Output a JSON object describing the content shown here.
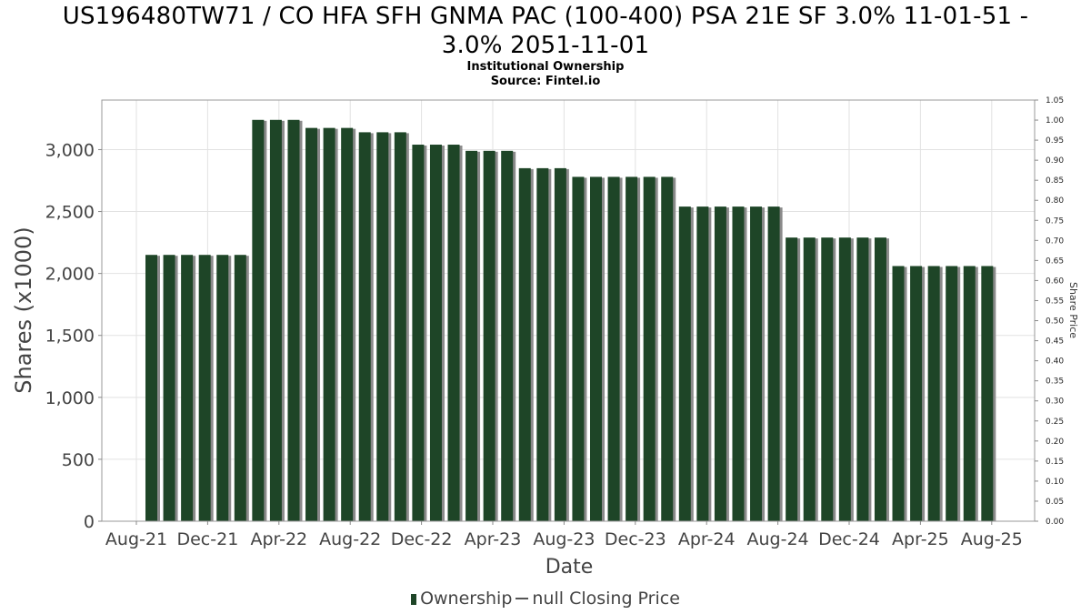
{
  "title_line1": "US196480TW71 / CO HFA SFH GNMA PAC (100-400) PSA 21E SF 3.0% 11-01-51 -",
  "title_line2": "3.0% 2051-11-01",
  "subtitle1": "Institutional Ownership",
  "subtitle2": "Source: Fintel.io",
  "legend": {
    "ownership": "Ownership",
    "price": "null Closing Price"
  },
  "colors": {
    "bar": "#1e4527",
    "bar_shadow": "#8a8a8a",
    "grid": "#e2e2e2"
  },
  "chart_data": {
    "type": "bar",
    "title": "US196480TW71 / CO HFA SFH GNMA PAC (100-400) PSA 21E SF 3.0% 11-01-51 - 3.0% 2051-11-01",
    "subtitle": "Institutional Ownership",
    "xlabel": "Date",
    "ylabel": "Shares (x1000)",
    "y2label": "Share Price",
    "ylim": [
      0,
      3400
    ],
    "y2lim": [
      0,
      1.05
    ],
    "grid": true,
    "legend_position": "bottom",
    "x_ticks": [
      "Aug-21",
      "Dec-21",
      "Apr-22",
      "Aug-22",
      "Dec-22",
      "Apr-23",
      "Aug-23",
      "Dec-23",
      "Apr-24",
      "Aug-24",
      "Dec-24",
      "Apr-25",
      "Aug-25"
    ],
    "y_ticks": [
      "0",
      "500",
      "1,000",
      "1,500",
      "2,000",
      "2,500",
      "3,000"
    ],
    "y2_ticks": [
      "0.00",
      "0.05",
      "0.10",
      "0.15",
      "0.20",
      "0.25",
      "0.30",
      "0.35",
      "0.40",
      "0.45",
      "0.50",
      "0.55",
      "0.60",
      "0.65",
      "0.70",
      "0.75",
      "0.80",
      "0.85",
      "0.90",
      "0.95",
      "1.00",
      "1.05"
    ],
    "series": [
      {
        "name": "Ownership",
        "values": [
          2150,
          2150,
          2150,
          2150,
          2150,
          2150,
          3240,
          3240,
          3240,
          3175,
          3175,
          3175,
          3140,
          3140,
          3140,
          3040,
          3040,
          3040,
          2990,
          2990,
          2990,
          2850,
          2850,
          2850,
          2780,
          2780,
          2780,
          2780,
          2780,
          2780,
          2540,
          2540,
          2540,
          2540,
          2540,
          2540,
          2290,
          2290,
          2290,
          2290,
          2290,
          2290,
          2060,
          2060,
          2060,
          2060,
          2060,
          2060
        ]
      },
      {
        "name": "null Closing Price",
        "values": []
      }
    ]
  }
}
